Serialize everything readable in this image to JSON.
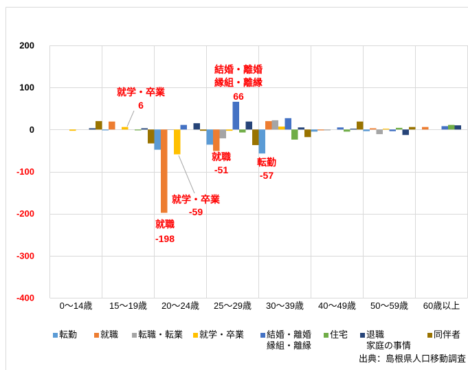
{
  "chart_data": {
    "type": "bar",
    "categories": [
      "0～14歳",
      "15～19歳",
      "20～24歳",
      "25～29歳",
      "30～39歳",
      "40～49歳",
      "50～59歳",
      "60歳以上"
    ],
    "series": [
      {
        "name": "転勤",
        "color": "#5B9BD5",
        "values": [
          0,
          -2,
          -48,
          -36,
          -57,
          -5,
          -4,
          0
        ]
      },
      {
        "name": "就職",
        "color": "#ED7D31",
        "values": [
          0,
          19,
          -198,
          -51,
          20,
          -2,
          3,
          6
        ]
      },
      {
        "name": "転職・転業",
        "color": "#A5A5A5",
        "values": [
          0,
          0,
          -1,
          -21,
          22,
          -2,
          -11,
          0
        ]
      },
      {
        "name": "就学・卒業",
        "color": "#FFC000",
        "values": [
          -3,
          6,
          -59,
          -3,
          7,
          0,
          2,
          0
        ]
      },
      {
        "name": "結婚・離婚\n縁組・離縁",
        "color": "#4472C4",
        "values": [
          0,
          0,
          11,
          66,
          27,
          5,
          -4,
          8
        ]
      },
      {
        "name": "住宅",
        "color": "#70AD47",
        "values": [
          0,
          -2,
          0,
          -7,
          -24,
          -5,
          4,
          11
        ]
      },
      {
        "name": "退職\n家庭の事情",
        "color": "#264478",
        "values": [
          3,
          3,
          15,
          19,
          5,
          2,
          -13,
          10
        ]
      },
      {
        "name": "同伴者",
        "color": "#997300",
        "values": [
          20,
          -33,
          -3,
          -37,
          -18,
          19,
          6,
          0
        ]
      }
    ],
    "ylim": [
      -400,
      200
    ],
    "yticks": [
      200,
      100,
      0,
      -100,
      -200,
      -300,
      -400
    ],
    "grid": true,
    "legend_position": "bottom",
    "annotations": [
      {
        "lines": [
          "就学・卒業",
          "6"
        ]
      },
      {
        "lines": [
          "結婚・離婚",
          "縁組・離縁",
          "66"
        ]
      },
      {
        "lines": [
          "就職",
          "-51"
        ]
      },
      {
        "lines": [
          "転勤",
          "-57"
        ]
      },
      {
        "lines": [
          "就学・卒業",
          "-59"
        ]
      },
      {
        "lines": [
          "就職",
          "-198"
        ]
      }
    ],
    "source": "出典：島根県人口移動調査",
    "colors": {
      "tick_label_positive": "#000000",
      "tick_label_negative": "#FF0000",
      "annotation": "#FF0000",
      "gridline": "#D9D9D9",
      "border": "#D9D9D9",
      "leader_line": "#A6A6A6"
    }
  }
}
